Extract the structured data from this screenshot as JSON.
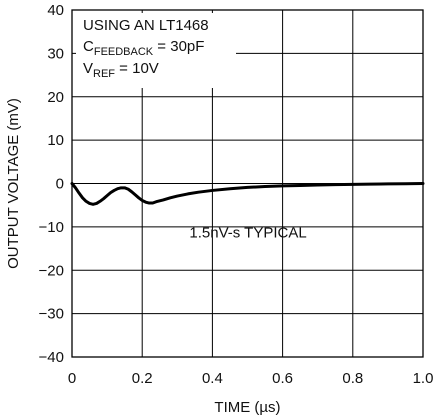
{
  "chart_data": {
    "type": "line",
    "title": "",
    "xlabel": "TIME (µs)",
    "ylabel": "OUTPUT VOLTAGE (mV)",
    "xlim": [
      0,
      1.0
    ],
    "ylim": [
      -40,
      40
    ],
    "x_ticks": [
      0,
      0.2,
      0.4,
      0.6,
      0.8,
      1.0
    ],
    "x_tick_labels": [
      "0",
      "0.2",
      "0.4",
      "0.6",
      "0.8",
      "1.0"
    ],
    "y_ticks": [
      40,
      30,
      20,
      10,
      0,
      -10,
      -20,
      -30,
      -40
    ],
    "y_tick_labels": [
      "40",
      "30",
      "20",
      "10",
      "0",
      "−10",
      "−20",
      "−30",
      "−40"
    ],
    "grid": true,
    "line_color": "#000000",
    "series": [
      {
        "x": [
          0,
          0.01,
          0.02,
          0.03,
          0.04,
          0.05,
          0.06,
          0.07,
          0.08,
          0.09,
          0.1,
          0.11,
          0.12,
          0.13,
          0.14,
          0.15,
          0.16,
          0.17,
          0.18,
          0.19,
          0.2,
          0.21,
          0.22,
          0.23,
          0.24,
          0.26,
          0.28,
          0.3,
          0.33,
          0.36,
          0.4,
          0.45,
          0.5,
          0.55,
          0.6,
          0.65,
          0.7,
          0.75,
          0.8,
          0.85,
          0.9,
          0.95,
          1.0
        ],
        "y": [
          0,
          -1.0,
          -2.2,
          -3.3,
          -4.1,
          -4.6,
          -4.8,
          -4.6,
          -4.1,
          -3.5,
          -2.8,
          -2.1,
          -1.6,
          -1.2,
          -1.0,
          -1.0,
          -1.3,
          -1.9,
          -2.6,
          -3.3,
          -3.9,
          -4.3,
          -4.5,
          -4.5,
          -4.2,
          -3.8,
          -3.3,
          -2.9,
          -2.4,
          -2.0,
          -1.6,
          -1.2,
          -0.9,
          -0.7,
          -0.55,
          -0.45,
          -0.35,
          -0.25,
          -0.2,
          -0.15,
          -0.1,
          -0.05,
          0
        ]
      }
    ],
    "annotations": {
      "device_line": "USING AN LT1468",
      "feedback_main": "C",
      "feedback_sub": "FEEDBACK",
      "feedback_value": " = 30pF",
      "vref_main": "V",
      "vref_sub": "REF",
      "vref_value": " = 10V",
      "curve_label": "1.5nV-s TYPICAL"
    }
  }
}
